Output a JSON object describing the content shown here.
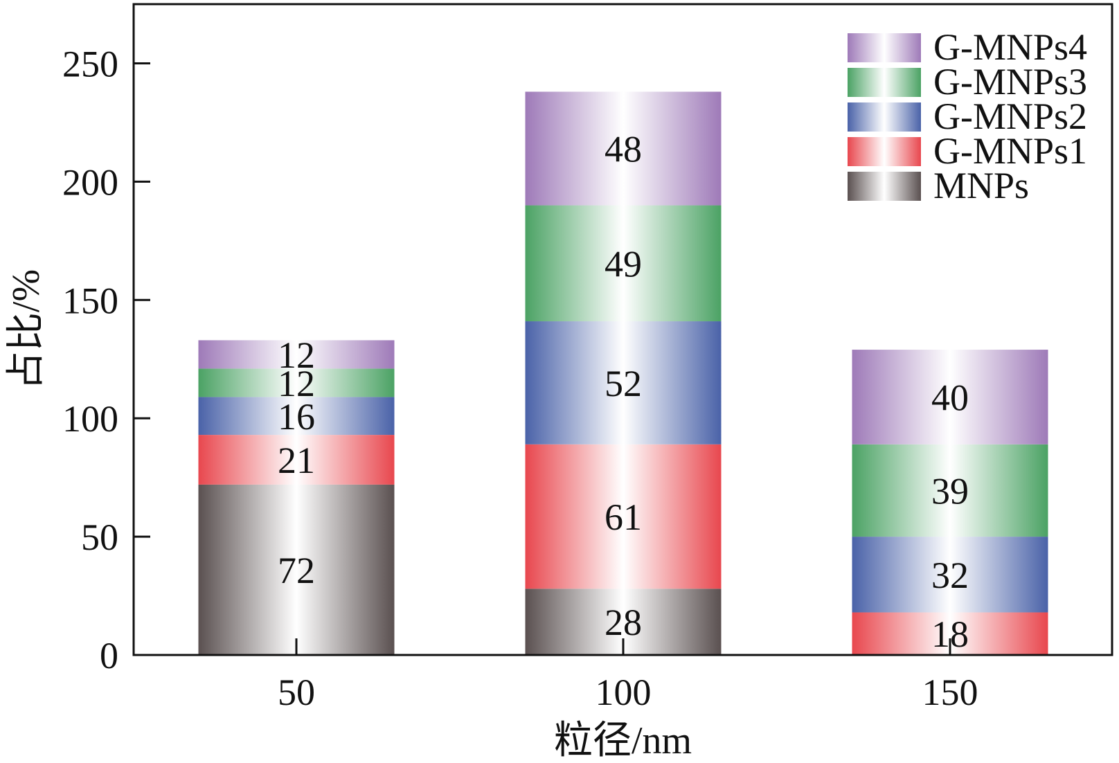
{
  "chart_data": {
    "type": "bar",
    "stacked": true,
    "categories": [
      "50",
      "100",
      "150"
    ],
    "xlabel": "粒径/nm",
    "ylabel": "占比/%",
    "ylim": [
      0,
      275
    ],
    "yticks": [
      0,
      50,
      100,
      150,
      200,
      250
    ],
    "grid": false,
    "legend_position": "top-right",
    "series": [
      {
        "name": "MNPs",
        "values": [
          72,
          28,
          0
        ],
        "color": "#5a5050"
      },
      {
        "name": "G-MNPs1",
        "values": [
          21,
          61,
          18
        ],
        "color": "#e8474e"
      },
      {
        "name": "G-MNPs2",
        "values": [
          16,
          52,
          32
        ],
        "color": "#4a62a8"
      },
      {
        "name": "G-MNPs3",
        "values": [
          12,
          49,
          39
        ],
        "color": "#4ba264"
      },
      {
        "name": "G-MNPs4",
        "values": [
          12,
          48,
          40
        ],
        "color": "#9e7ab8"
      }
    ]
  }
}
